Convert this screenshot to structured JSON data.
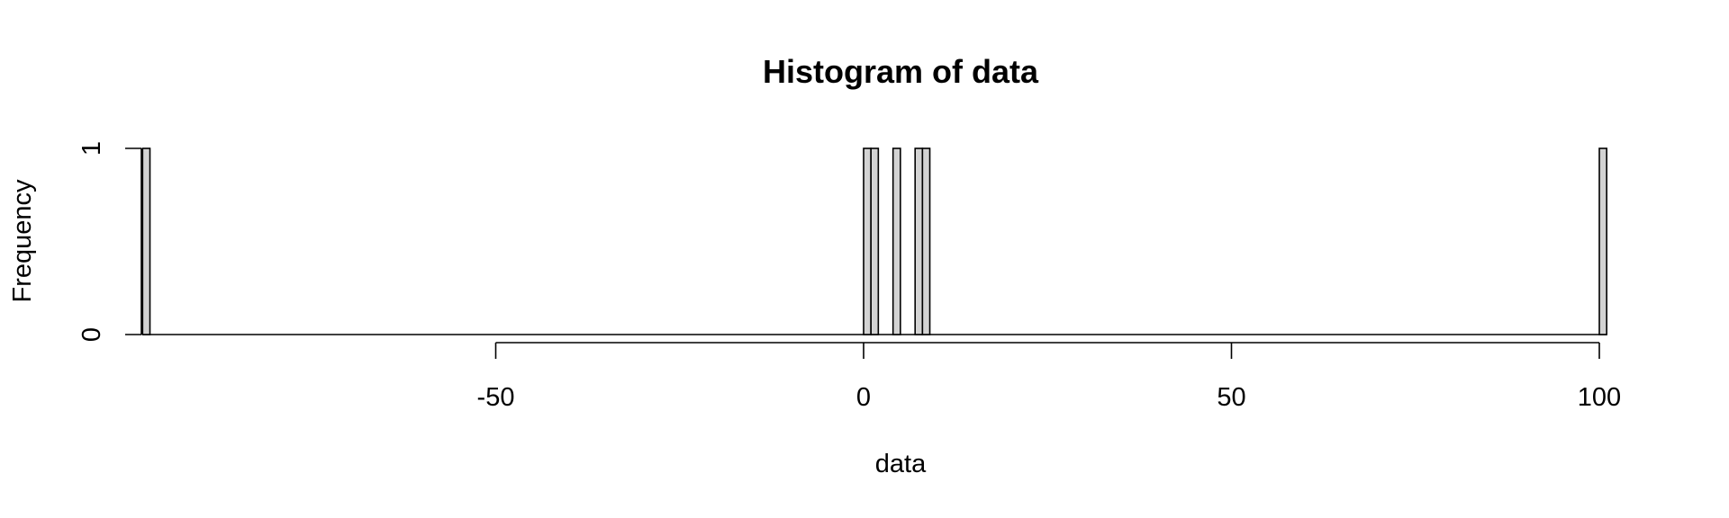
{
  "chart_data": {
    "type": "bar",
    "title": "Histogram of data",
    "xlabel": "data",
    "ylabel": "Frequency",
    "x_ticks": [
      -50,
      0,
      50,
      100
    ],
    "x_tick_labels": [
      "-50",
      "0",
      "50",
      "100"
    ],
    "y_ticks": [
      0,
      1
    ],
    "y_tick_labels": [
      "0",
      "1"
    ],
    "xlim": [
      -98,
      101
    ],
    "ylim": [
      0,
      1
    ],
    "bin_width": 1,
    "bins": [
      {
        "start": -98,
        "end": -97,
        "count": 1
      },
      {
        "start": 0,
        "end": 1,
        "count": 1
      },
      {
        "start": 1,
        "end": 2,
        "count": 1
      },
      {
        "start": 4,
        "end": 5,
        "count": 1
      },
      {
        "start": 7,
        "end": 8,
        "count": 1
      },
      {
        "start": 8,
        "end": 9,
        "count": 1
      },
      {
        "start": 100,
        "end": 101,
        "count": 1
      }
    ],
    "bar_color": "#d3d3d3",
    "edge_color": "#000000",
    "grid": false,
    "legend": "none"
  }
}
